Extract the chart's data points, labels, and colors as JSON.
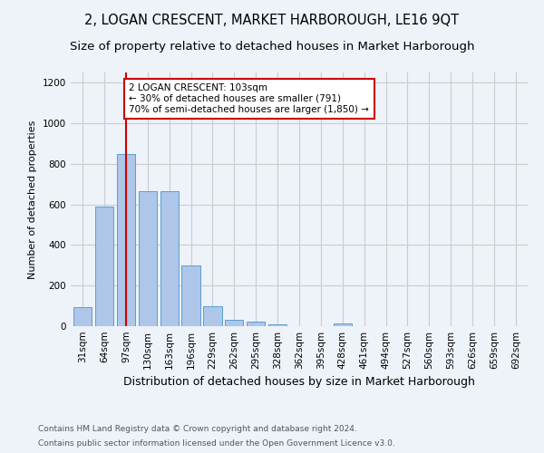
{
  "title": "2, LOGAN CRESCENT, MARKET HARBOROUGH, LE16 9QT",
  "subtitle": "Size of property relative to detached houses in Market Harborough",
  "xlabel": "Distribution of detached houses by size in Market Harborough",
  "ylabel": "Number of detached properties",
  "footer_line1": "Contains HM Land Registry data © Crown copyright and database right 2024.",
  "footer_line2": "Contains public sector information licensed under the Open Government Licence v3.0.",
  "bin_labels": [
    "31sqm",
    "64sqm",
    "97sqm",
    "130sqm",
    "163sqm",
    "196sqm",
    "229sqm",
    "262sqm",
    "295sqm",
    "328sqm",
    "362sqm",
    "395sqm",
    "428sqm",
    "461sqm",
    "494sqm",
    "527sqm",
    "560sqm",
    "593sqm",
    "626sqm",
    "659sqm",
    "692sqm"
  ],
  "bar_values": [
    95,
    590,
    850,
    665,
    665,
    300,
    100,
    30,
    22,
    10,
    0,
    0,
    12,
    0,
    0,
    0,
    0,
    0,
    0,
    0,
    0
  ],
  "bar_color": "#aec6e8",
  "bar_edge_color": "#5a9fd4",
  "property_bin_index": 2,
  "vline_color": "#cc0000",
  "annotation_text": "2 LOGAN CRESCENT: 103sqm\n← 30% of detached houses are smaller (791)\n70% of semi-detached houses are larger (1,850) →",
  "annotation_box_color": "#ffffff",
  "annotation_box_edge_color": "#cc0000",
  "ylim": [
    0,
    1250
  ],
  "yticks": [
    0,
    200,
    400,
    600,
    800,
    1000,
    1200
  ],
  "grid_color": "#cccccc",
  "background_color": "#eef2f9",
  "title_fontsize": 10.5,
  "subtitle_fontsize": 9.5,
  "tick_fontsize": 7.5,
  "ylabel_fontsize": 8,
  "xlabel_fontsize": 9,
  "footer_fontsize": 6.5
}
